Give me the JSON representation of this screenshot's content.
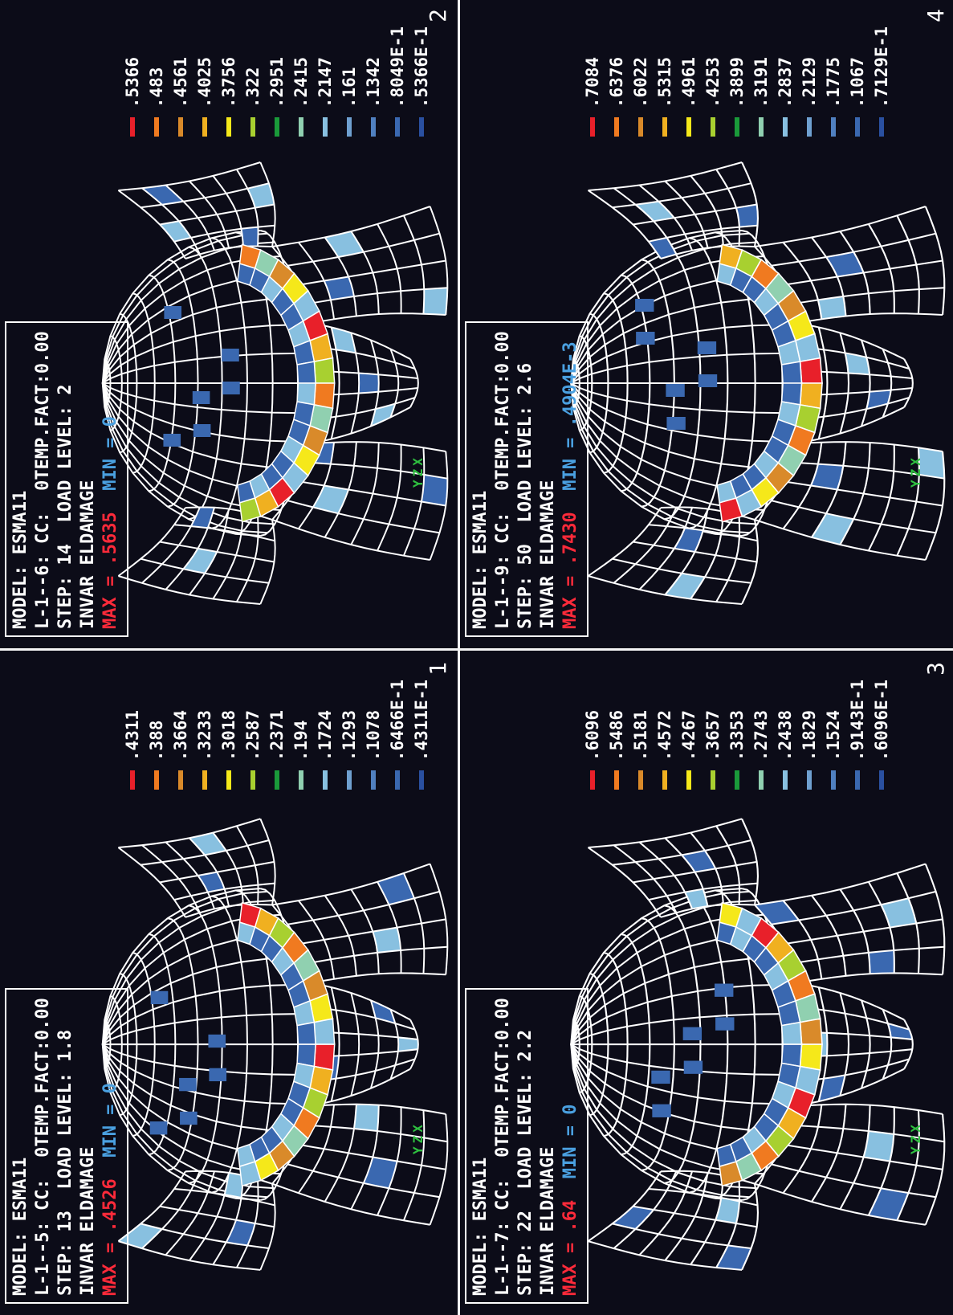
{
  "panels": [
    {
      "number": "1",
      "model": "MODEL: ESMA11",
      "load_case": "L-1--5: CC:  0TEMP.FACT:0.00",
      "step": "STEP: 13  LOAD LEVEL: 1.8",
      "invar": "INVAR ELDAMAGE",
      "max": "MAX = .4526",
      "min": "MIN = 0",
      "legend": [
        ".4311",
        ".388",
        ".3664",
        ".3233",
        ".3018",
        ".2587",
        ".2371",
        ".194",
        ".1724",
        ".1293",
        ".1078",
        ".6466E-1",
        ".4311E-1"
      ],
      "triad": [
        "Y",
        "Z",
        "X"
      ]
    },
    {
      "number": "2",
      "model": "MODEL: ESMA11",
      "load_case": "L-1--6: CC:  0TEMP.FACT:0.00",
      "step": "STEP: 14  LOAD LEVEL: 2",
      "invar": "INVAR ELDAMAGE",
      "max": "MAX = .5635",
      "min": "MIN = 0",
      "legend": [
        ".5366",
        ".483",
        ".4561",
        ".4025",
        ".3756",
        ".322",
        ".2951",
        ".2415",
        ".2147",
        ".161",
        ".1342",
        ".8049E-1",
        ".5366E-1"
      ],
      "triad": [
        "Y",
        "Z",
        "X"
      ]
    },
    {
      "number": "3",
      "model": "MODEL: ESMA11",
      "load_case": "L-1--7: CC:  0TEMP.FACT:0.00",
      "step": "STEP: 22  LOAD LEVEL: 2.2",
      "invar": "INVAR ELDAMAGE",
      "max": "MAX = .64",
      "min": "MIN = 0",
      "legend": [
        ".6096",
        ".5486",
        ".5181",
        ".4572",
        ".4267",
        ".3657",
        ".3353",
        ".2743",
        ".2438",
        ".1829",
        ".1524",
        ".9143E-1",
        ".6096E-1"
      ],
      "triad": [
        "Y",
        "Z",
        "X"
      ]
    },
    {
      "number": "4",
      "model": "MODEL: ESMA11",
      "load_case": "L-1--9: CC:  0TEMP.FACT:0.00",
      "step": "STEP: 50  LOAD LEVEL: 2.6",
      "invar": "INVAR ELDAMAGE",
      "max": "MAX = .7430",
      "min": "MIN = .4904E-3",
      "legend": [
        ".7084",
        ".6376",
        ".6022",
        ".5315",
        ".4961",
        ".4253",
        ".3899",
        ".3191",
        ".2837",
        ".2129",
        ".1775",
        ".1067",
        ".7129E-1"
      ],
      "triad": [
        "Y",
        "Z",
        "X"
      ]
    }
  ]
}
